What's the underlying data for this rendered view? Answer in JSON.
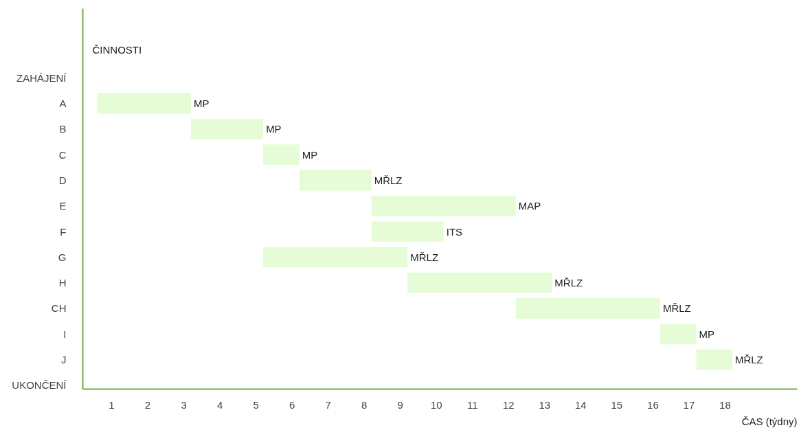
{
  "chart_data": {
    "type": "bar",
    "orientation": "horizontal",
    "xlabel": "ČAS (týdny)",
    "ylabel": "ČINNOSTI",
    "categories": [
      "ZAHÁJENÍ",
      "A",
      "B",
      "C",
      "D",
      "E",
      "F",
      "G",
      "H",
      "CH",
      "I",
      "J",
      "UKONČENÍ"
    ],
    "base": [
      null,
      0.6,
      3.2,
      5.2,
      6.2,
      8.2,
      8.2,
      5.2,
      9.2,
      12.2,
      16.2,
      17.2,
      null
    ],
    "values": [
      null,
      2.6,
      2,
      1,
      2,
      4,
      2,
      4,
      4,
      4,
      1,
      1,
      null
    ],
    "value_labels": [
      null,
      "MP",
      "MP",
      "MP",
      "MŘLZ",
      "MAP",
      "ITS",
      "MŘLZ",
      "MŘLZ",
      "MŘLZ",
      "MP",
      "MŘLZ",
      null
    ],
    "color": "#e6fcd6",
    "xlim": [
      0.2,
      20
    ],
    "xticks": [
      1,
      2,
      3,
      4,
      5,
      6,
      7,
      8,
      9,
      10,
      11,
      12,
      13,
      14,
      15,
      16,
      17,
      18
    ],
    "grid": false
  }
}
